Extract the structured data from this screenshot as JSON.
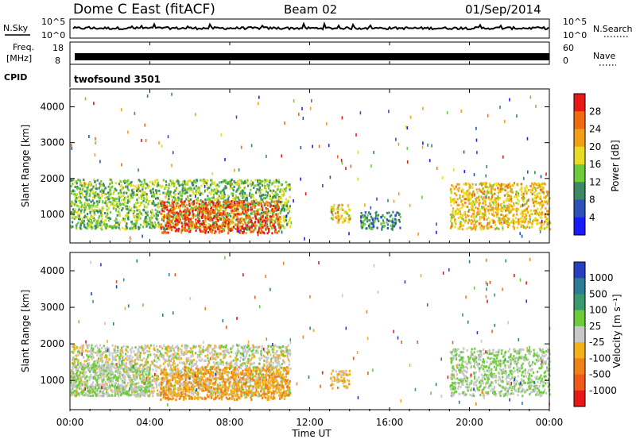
{
  "header": {
    "site": "Dome C East (fitACF)",
    "beam": "Beam 02",
    "date": "01/Sep/2014"
  },
  "strips": {
    "nsky_label": "N.Sky",
    "nsky_top": "10^5",
    "nsky_bottom": "10^0",
    "nsky_right_top": "10^5",
    "nsky_right_bottom": "10^0",
    "nsearch_label": "N.Search",
    "freq_label_1": "Freq.",
    "freq_label_2": "[MHz]",
    "freq_top": "18",
    "freq_bottom": "8",
    "nave_top": "60",
    "nave_bottom": "0",
    "nave_label": "Nave",
    "cpid_label": "CPID",
    "cpid_value": "twofsound 3501"
  },
  "power_panel": {
    "ylabel": "Slant Range [km]",
    "yticks": [
      "1000",
      "2000",
      "3000",
      "4000"
    ],
    "colorbar_label": "Power [dB]",
    "colorbar_ticks": [
      "4",
      "8",
      "12",
      "16",
      "20",
      "24",
      "28"
    ],
    "colorbar_colors": [
      "#1a1aff",
      "#2c52b8",
      "#3a8a66",
      "#6ecc3c",
      "#e6dd22",
      "#f2a018",
      "#f06a10",
      "#e81818"
    ]
  },
  "velocity_panel": {
    "ylabel": "Slant Range [km]",
    "yticks": [
      "1000",
      "2000",
      "3000",
      "4000"
    ],
    "colorbar_label": "Velocity [m s⁻¹]",
    "colorbar_ticks": [
      "1000",
      "500",
      "100",
      "25",
      "-25",
      "-100",
      "-500",
      "-1000"
    ],
    "colorbar_colors": [
      "#2840c0",
      "#2c7c96",
      "#3a9a6e",
      "#6ccc3a",
      "#c8c8c8",
      "#f4b018",
      "#f08018",
      "#f05a18",
      "#e81818"
    ]
  },
  "xaxis": {
    "ticks": [
      "00:00",
      "04:00",
      "08:00",
      "12:00",
      "16:00",
      "20:00",
      "00:00"
    ],
    "label": "Time UT"
  },
  "chart_data": [
    {
      "type": "heatmap",
      "title": "Power",
      "xlabel": "Time UT",
      "ylabel": "Slant Range [km]",
      "xlim": [
        0,
        24
      ],
      "ylim": [
        200,
        4500
      ],
      "colorbar": {
        "label": "Power [dB]",
        "range": [
          0,
          32
        ]
      },
      "regions": [
        {
          "t0": 0.0,
          "t1": 11.0,
          "r0": 600,
          "r1": 2000,
          "level": 14
        },
        {
          "t0": 4.5,
          "t1": 10.5,
          "r0": 500,
          "r1": 1400,
          "level": 27
        },
        {
          "t0": 13.0,
          "t1": 14.0,
          "r0": 800,
          "r1": 1300,
          "level": 20
        },
        {
          "t0": 14.5,
          "t1": 16.5,
          "r0": 600,
          "r1": 1100,
          "level": 10
        },
        {
          "t0": 19.0,
          "t1": 24.0,
          "r0": 600,
          "r1": 1900,
          "level": 20
        }
      ]
    },
    {
      "type": "heatmap",
      "title": "Velocity",
      "xlabel": "Time UT",
      "ylabel": "Slant Range [km]",
      "xlim": [
        0,
        24
      ],
      "ylim": [
        200,
        4500
      ],
      "colorbar": {
        "label": "Velocity [m s-1]",
        "range": [
          -1000,
          1000
        ]
      },
      "regions": [
        {
          "t0": 0.0,
          "t1": 11.0,
          "r0": 600,
          "r1": 2000,
          "level": 0
        },
        {
          "t0": 0.0,
          "t1": 4.0,
          "r0": 600,
          "r1": 1500,
          "level": 120
        },
        {
          "t0": 4.5,
          "t1": 11.0,
          "r0": 500,
          "r1": 1400,
          "level": -300
        },
        {
          "t0": 13.0,
          "t1": 14.0,
          "r0": 800,
          "r1": 1300,
          "level": -200
        },
        {
          "t0": 19.0,
          "t1": 24.0,
          "r0": 600,
          "r1": 1900,
          "level": 100
        }
      ]
    }
  ]
}
